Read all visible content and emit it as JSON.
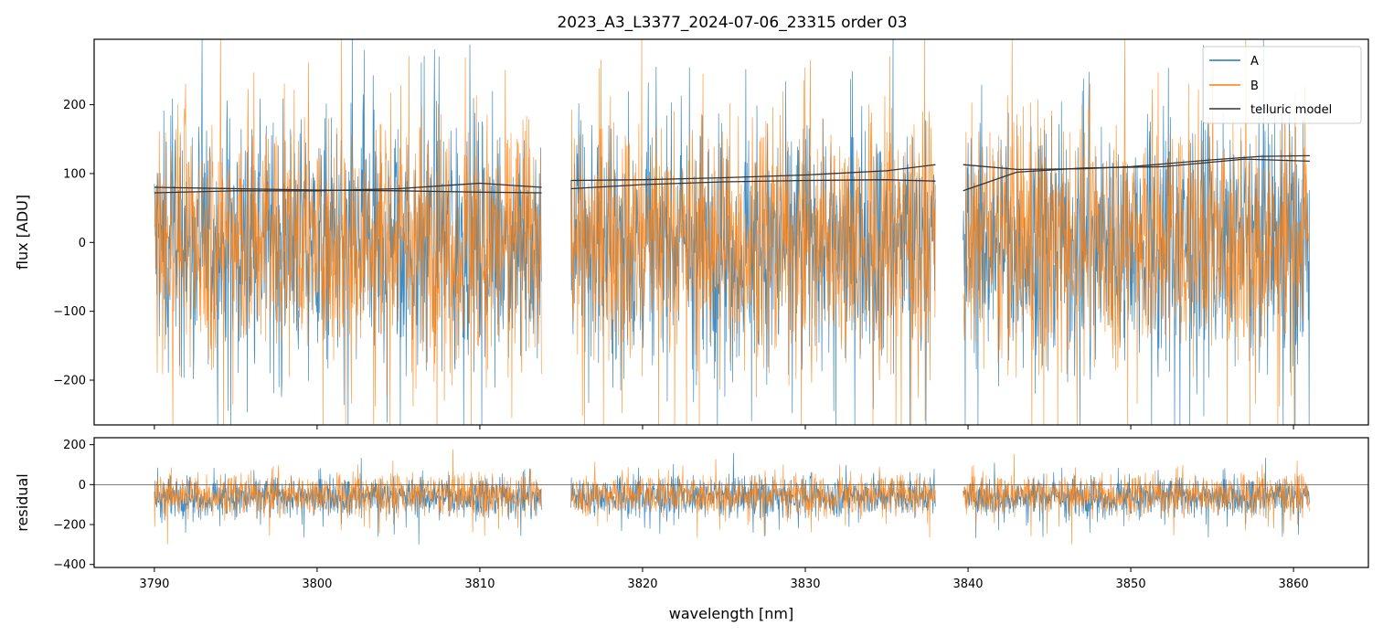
{
  "chart_data": {
    "type": "line",
    "title": "2023_A3_L3377_2024-07-06_23315  order 03",
    "xlabel": "wavelength [nm]",
    "xlim": [
      3786.3,
      3864.6
    ],
    "xticks": [
      3790,
      3800,
      3810,
      3820,
      3830,
      3840,
      3850,
      3860
    ],
    "segments": [
      [
        3790.0,
        3813.8
      ],
      [
        3815.6,
        3838.0
      ],
      [
        3839.7,
        3861.0
      ]
    ],
    "legend": {
      "placement": "top-right",
      "entries": [
        "A",
        "B",
        "telluric model"
      ]
    },
    "colors": {
      "A": "#1f77b4",
      "B": "#ff7f0e",
      "model": "#333333"
    },
    "panels": [
      {
        "name": "flux",
        "ylabel": "flux [ADU]",
        "ylim": [
          -265,
          295
        ],
        "yticks": [
          -200,
          -100,
          0,
          100,
          200
        ],
        "series": [
          {
            "name": "A",
            "center": 0,
            "spread": 210
          },
          {
            "name": "B",
            "center": 5,
            "spread": 220
          },
          {
            "name": "telluric model",
            "curves": [
              [
                [
                  3790.0,
                  80
                ],
                [
                  3795,
                  78
                ],
                [
                  3800,
                  76
                ],
                [
                  3805,
                  75
                ],
                [
                  3810,
                  73
                ],
                [
                  3813.8,
                  72
                ]
              ],
              [
                [
                  3790.0,
                  72
                ],
                [
                  3795,
                  75
                ],
                [
                  3800,
                  75
                ],
                [
                  3805,
                  78
                ],
                [
                  3810,
                  86
                ],
                [
                  3813.8,
                  80
                ]
              ],
              [
                [
                  3815.6,
                  90
                ],
                [
                  3820,
                  91
                ],
                [
                  3825,
                  94
                ],
                [
                  3830,
                  98
                ],
                [
                  3835,
                  104
                ],
                [
                  3838.0,
                  113
                ]
              ],
              [
                [
                  3815.6,
                  78
                ],
                [
                  3820,
                  84
                ],
                [
                  3825,
                  88
                ],
                [
                  3830,
                  90
                ],
                [
                  3835,
                  91
                ],
                [
                  3838.0,
                  89
                ]
              ],
              [
                [
                  3839.7,
                  113
                ],
                [
                  3843,
                  106
                ],
                [
                  3847,
                  107
                ],
                [
                  3850,
                  110
                ],
                [
                  3855,
                  120
                ],
                [
                  3858,
                  125
                ],
                [
                  3861.0,
                  126
                ]
              ],
              [
                [
                  3839.7,
                  75
                ],
                [
                  3843,
                  102
                ],
                [
                  3847,
                  108
                ],
                [
                  3852,
                  110
                ],
                [
                  3857,
                  121
                ],
                [
                  3861.0,
                  118
                ]
              ]
            ]
          }
        ]
      },
      {
        "name": "residual",
        "ylabel": "residual",
        "ylim": [
          -415,
          235
        ],
        "yticks": [
          -400,
          -200,
          0,
          200
        ],
        "zero_line": true,
        "series": [
          {
            "name": "A",
            "center": -60,
            "spread": 120
          },
          {
            "name": "B",
            "center": -50,
            "spread": 125
          }
        ]
      }
    ]
  }
}
